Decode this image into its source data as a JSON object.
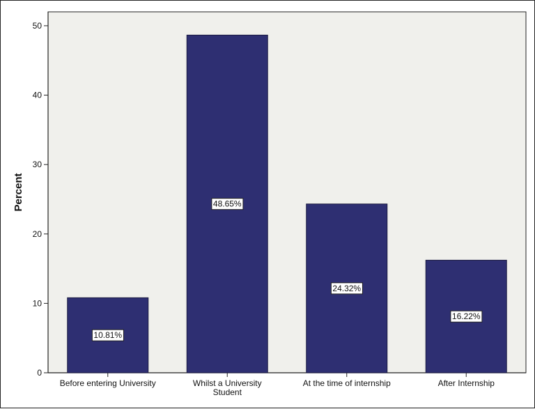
{
  "chart_data": {
    "type": "bar",
    "title": "",
    "xlabel": "",
    "ylabel": "Percent",
    "categories": [
      [
        "Before entering University"
      ],
      [
        "Whilst a University",
        "Student"
      ],
      [
        "At the time of internship"
      ],
      [
        "After Internship"
      ]
    ],
    "values": [
      10.81,
      48.65,
      24.32,
      16.22
    ],
    "data_labels": [
      "10.81%",
      "48.65%",
      "24.32%",
      "16.22%"
    ],
    "ylim": [
      0,
      52
    ],
    "yticks": [
      0,
      10,
      20,
      30,
      40,
      50
    ],
    "grid": false,
    "colors": {
      "bar": "#2e2f72",
      "plot_background": "#f0f0ec",
      "axis": "#222222"
    }
  }
}
